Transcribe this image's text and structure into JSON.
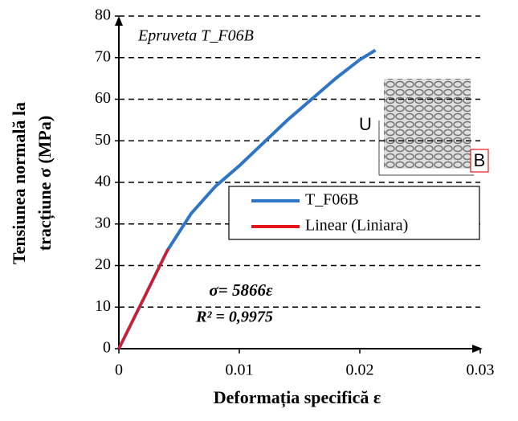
{
  "chart_data": {
    "type": "line",
    "annotation": "Epruveta T_F06B",
    "equation": "σ= 5866ε",
    "r_squared": "R² = 0,9975",
    "ylabel_lines": [
      "Tensiunea normală la",
      "tracțiune σ (MPa)"
    ],
    "xlabel": "Deformația specifică ε",
    "inset_labels": [
      "U",
      "B"
    ],
    "xlim": [
      0,
      0.03
    ],
    "xticks": [
      0,
      0.01,
      0.02,
      0.03
    ],
    "ylim": [
      0,
      80
    ],
    "yticks": [
      0,
      10,
      20,
      30,
      40,
      50,
      60,
      70,
      80
    ],
    "grid": true,
    "series": [
      {
        "name": "T_F06B",
        "color": "#2e75c6",
        "x": [
          0,
          0.002,
          0.004,
          0.006,
          0.008,
          0.01,
          0.012,
          0.014,
          0.016,
          0.018,
          0.02,
          0.0213
        ],
        "values": [
          0,
          11.7,
          23.5,
          32.5,
          39,
          44,
          49.5,
          55,
          60,
          65,
          69.5,
          71.8
        ]
      },
      {
        "name": "Linear (Liniara)",
        "color": "#e8141c",
        "x": [
          0,
          0.0041
        ],
        "values": [
          0,
          24
        ]
      }
    ]
  }
}
